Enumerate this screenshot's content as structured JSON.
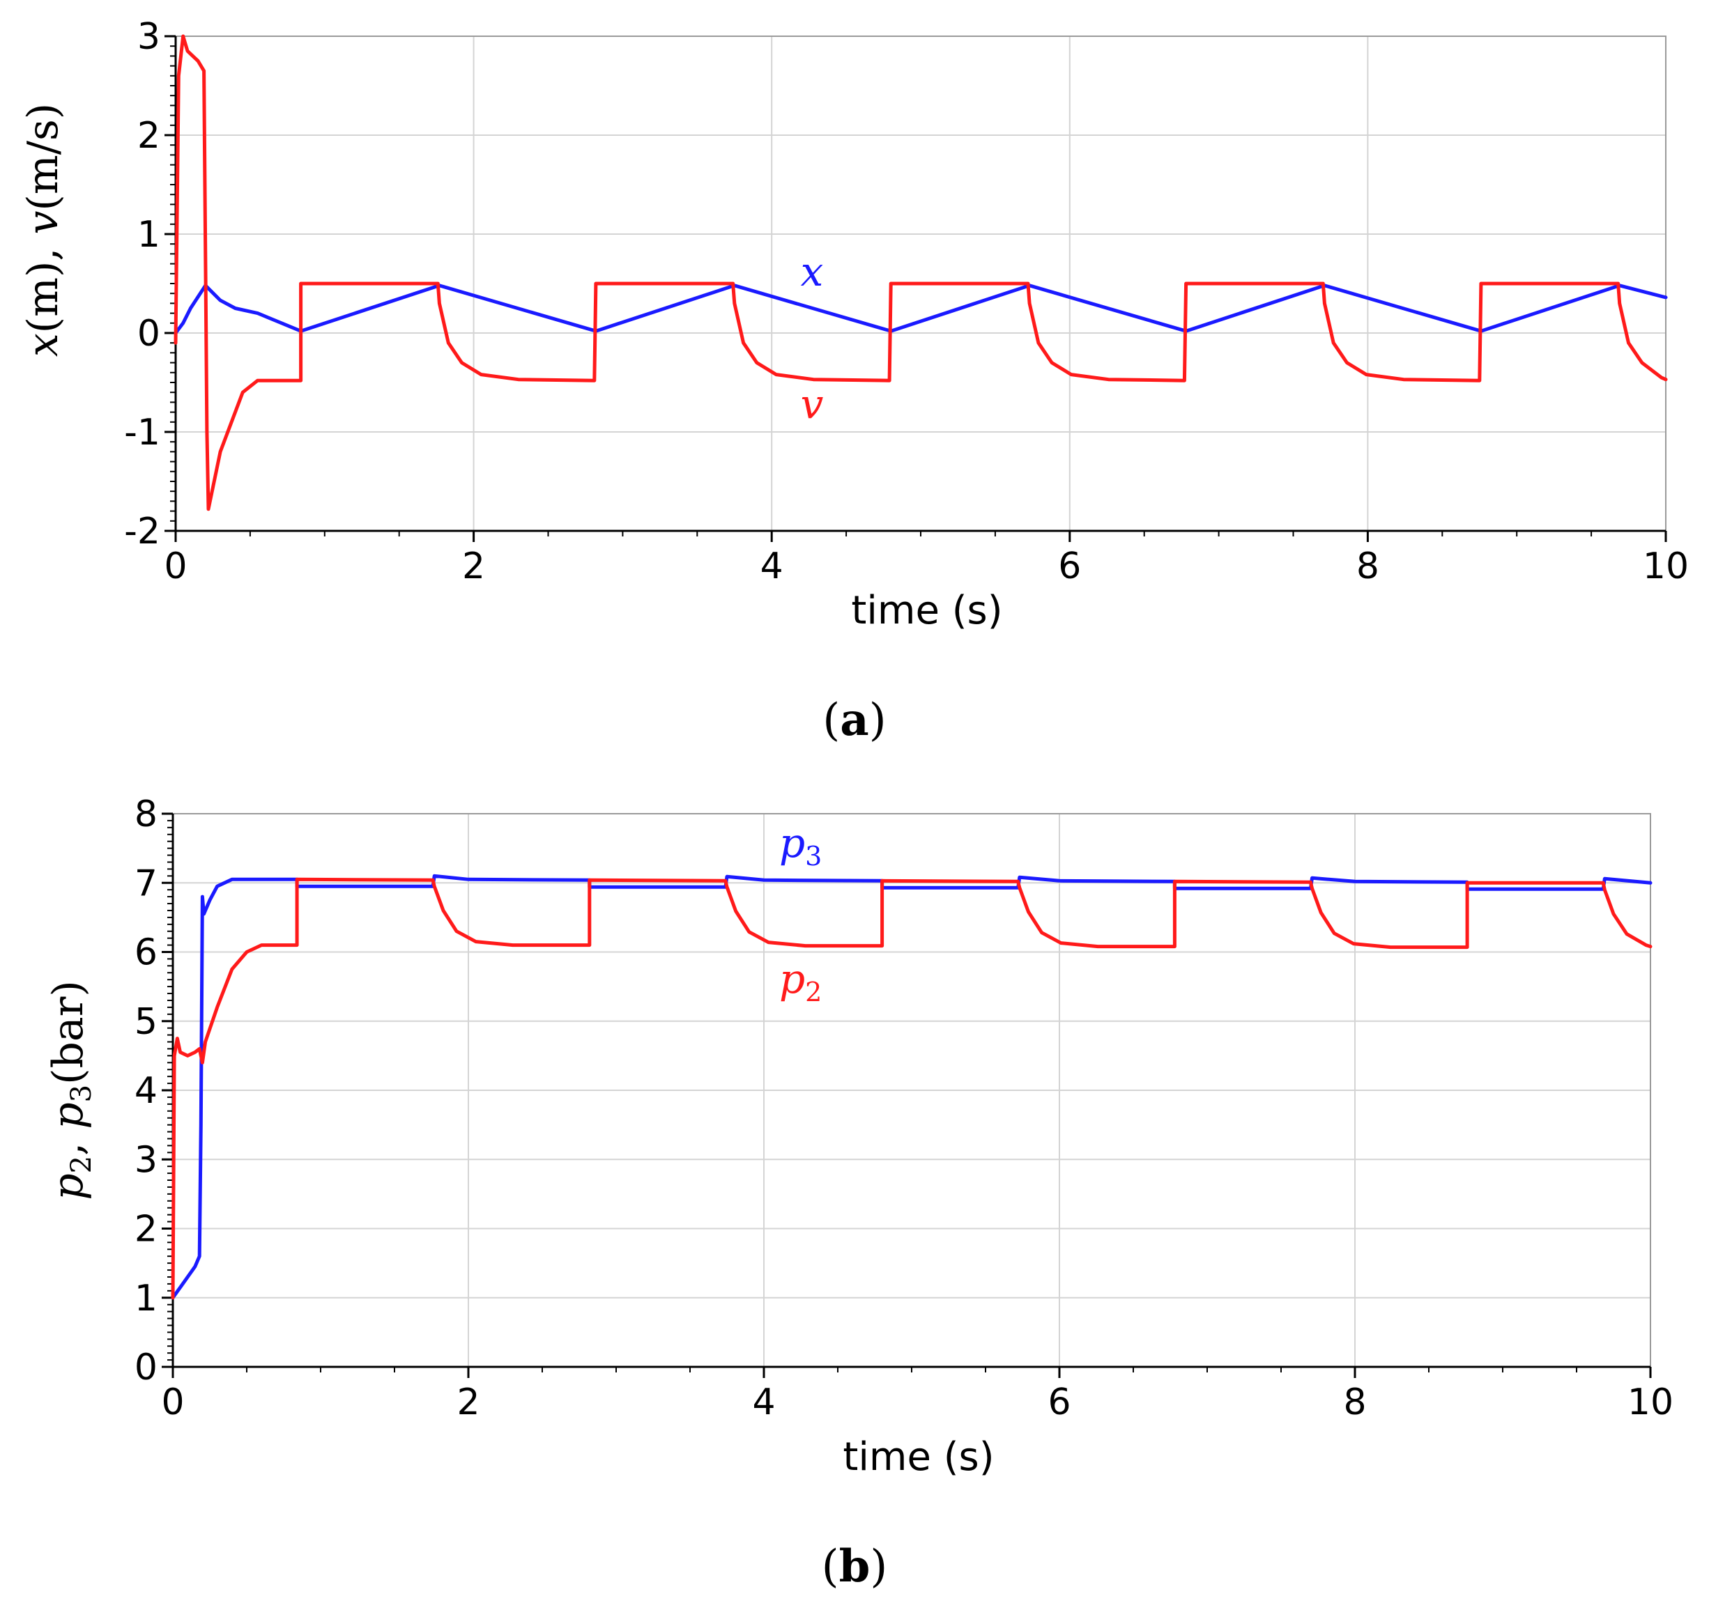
{
  "colors": {
    "blue": "#1a1aff",
    "red": "#ff1a1a"
  },
  "chart_data": [
    {
      "type": "line",
      "panel": "a",
      "caption_open": "(",
      "caption_letter": "a",
      "caption_close": ")",
      "xlabel": "time (s)",
      "ylabel_parts": [
        "x",
        "(m), ",
        "v",
        "(m/s)"
      ],
      "xlim": [
        0,
        10
      ],
      "ylim": [
        -2,
        3
      ],
      "xticks": [
        0,
        2,
        4,
        6,
        8,
        10
      ],
      "yticks": [
        -2,
        -1,
        0,
        1,
        2,
        3
      ],
      "series": [
        {
          "name": "x",
          "label": "x",
          "label_sub": "",
          "color": "blue",
          "points": [
            [
              0,
              0
            ],
            [
              0.05,
              0.1
            ],
            [
              0.1,
              0.25
            ],
            [
              0.2,
              0.48
            ],
            [
              0.3,
              0.33
            ],
            [
              0.4,
              0.25
            ],
            [
              0.55,
              0.2
            ],
            [
              0.84,
              0.02
            ],
            [
              1.77,
              0.48
            ],
            [
              2.82,
              0.02
            ],
            [
              3.75,
              0.48
            ],
            [
              4.8,
              0.02
            ],
            [
              5.73,
              0.48
            ],
            [
              6.78,
              0.02
            ],
            [
              7.71,
              0.48
            ],
            [
              8.76,
              0.02
            ],
            [
              9.69,
              0.48
            ],
            [
              10,
              0.36
            ]
          ]
        },
        {
          "name": "v",
          "label": "v",
          "label_sub": "",
          "color": "red",
          "points": [
            [
              0,
              -0.1
            ],
            [
              0.02,
              2.6
            ],
            [
              0.05,
              3.0
            ],
            [
              0.08,
              2.85
            ],
            [
              0.15,
              2.75
            ],
            [
              0.19,
              2.65
            ],
            [
              0.21,
              -1.0
            ],
            [
              0.22,
              -1.78
            ],
            [
              0.3,
              -1.2
            ],
            [
              0.45,
              -0.6
            ],
            [
              0.55,
              -0.48
            ],
            [
              0.84,
              -0.48
            ],
            [
              0.84,
              0.5
            ],
            [
              1.76,
              0.5
            ],
            [
              1.77,
              0.3
            ],
            [
              1.83,
              -0.1
            ],
            [
              1.92,
              -0.3
            ],
            [
              2.05,
              -0.42
            ],
            [
              2.3,
              -0.47
            ],
            [
              2.81,
              -0.48
            ],
            [
              2.82,
              0.5
            ],
            [
              3.74,
              0.5
            ],
            [
              3.75,
              0.3
            ],
            [
              3.81,
              -0.1
            ],
            [
              3.9,
              -0.3
            ],
            [
              4.03,
              -0.42
            ],
            [
              4.28,
              -0.47
            ],
            [
              4.79,
              -0.48
            ],
            [
              4.8,
              0.5
            ],
            [
              5.72,
              0.5
            ],
            [
              5.73,
              0.3
            ],
            [
              5.79,
              -0.1
            ],
            [
              5.88,
              -0.3
            ],
            [
              6.01,
              -0.42
            ],
            [
              6.26,
              -0.47
            ],
            [
              6.77,
              -0.48
            ],
            [
              6.78,
              0.5
            ],
            [
              7.7,
              0.5
            ],
            [
              7.71,
              0.3
            ],
            [
              7.77,
              -0.1
            ],
            [
              7.86,
              -0.3
            ],
            [
              7.99,
              -0.42
            ],
            [
              8.24,
              -0.47
            ],
            [
              8.75,
              -0.48
            ],
            [
              8.76,
              0.5
            ],
            [
              9.68,
              0.5
            ],
            [
              9.69,
              0.3
            ],
            [
              9.75,
              -0.1
            ],
            [
              9.84,
              -0.3
            ],
            [
              9.97,
              -0.45
            ],
            [
              10,
              -0.47
            ]
          ]
        }
      ]
    },
    {
      "type": "line",
      "panel": "b",
      "caption_open": "(",
      "caption_letter": "b",
      "caption_close": ")",
      "xlabel": "time (s)",
      "ylabel_parts": [
        "p",
        "2",
        ", ",
        "p",
        "3",
        "(bar)"
      ],
      "xlim": [
        0,
        10
      ],
      "ylim": [
        0,
        8
      ],
      "xticks": [
        0,
        2,
        4,
        6,
        8,
        10
      ],
      "yticks": [
        0,
        1,
        2,
        3,
        4,
        5,
        6,
        7,
        8
      ],
      "series": [
        {
          "name": "p3",
          "label": "p",
          "label_sub": "3",
          "color": "blue",
          "points": [
            [
              0,
              1.0
            ],
            [
              0.05,
              1.15
            ],
            [
              0.15,
              1.45
            ],
            [
              0.18,
              1.6
            ],
            [
              0.19,
              3.5
            ],
            [
              0.2,
              6.8
            ],
            [
              0.21,
              6.55
            ],
            [
              0.25,
              6.75
            ],
            [
              0.3,
              6.95
            ],
            [
              0.4,
              7.05
            ],
            [
              0.84,
              7.05
            ],
            [
              0.84,
              6.95
            ],
            [
              1.76,
              6.95
            ],
            [
              1.77,
              7.1
            ],
            [
              2.0,
              7.05
            ],
            [
              2.82,
              7.04
            ],
            [
              2.82,
              6.94
            ],
            [
              3.74,
              6.94
            ],
            [
              3.75,
              7.09
            ],
            [
              4.0,
              7.04
            ],
            [
              4.8,
              7.03
            ],
            [
              4.8,
              6.93
            ],
            [
              5.72,
              6.93
            ],
            [
              5.73,
              7.08
            ],
            [
              6.0,
              7.03
            ],
            [
              6.78,
              7.02
            ],
            [
              6.78,
              6.92
            ],
            [
              7.7,
              6.92
            ],
            [
              7.71,
              7.07
            ],
            [
              8.0,
              7.02
            ],
            [
              8.76,
              7.01
            ],
            [
              8.76,
              6.91
            ],
            [
              9.68,
              6.91
            ],
            [
              9.69,
              7.06
            ],
            [
              10,
              7.0
            ]
          ]
        },
        {
          "name": "p2",
          "label": "p",
          "label_sub": "2",
          "color": "red",
          "points": [
            [
              0,
              1.0
            ],
            [
              0.01,
              4.5
            ],
            [
              0.03,
              4.75
            ],
            [
              0.05,
              4.55
            ],
            [
              0.1,
              4.5
            ],
            [
              0.15,
              4.55
            ],
            [
              0.18,
              4.6
            ],
            [
              0.2,
              4.4
            ],
            [
              0.22,
              4.7
            ],
            [
              0.3,
              5.2
            ],
            [
              0.4,
              5.75
            ],
            [
              0.5,
              6.0
            ],
            [
              0.6,
              6.1
            ],
            [
              0.84,
              6.1
            ],
            [
              0.84,
              7.05
            ],
            [
              1.76,
              7.04
            ],
            [
              1.77,
              6.95
            ],
            [
              1.83,
              6.6
            ],
            [
              1.92,
              6.3
            ],
            [
              2.05,
              6.15
            ],
            [
              2.3,
              6.1
            ],
            [
              2.82,
              6.1
            ],
            [
              2.82,
              7.04
            ],
            [
              3.74,
              7.03
            ],
            [
              3.75,
              6.94
            ],
            [
              3.81,
              6.59
            ],
            [
              3.9,
              6.29
            ],
            [
              4.03,
              6.14
            ],
            [
              4.28,
              6.09
            ],
            [
              4.8,
              6.09
            ],
            [
              4.8,
              7.03
            ],
            [
              5.72,
              7.02
            ],
            [
              5.73,
              6.93
            ],
            [
              5.79,
              6.58
            ],
            [
              5.88,
              6.28
            ],
            [
              6.01,
              6.13
            ],
            [
              6.26,
              6.08
            ],
            [
              6.78,
              6.08
            ],
            [
              6.78,
              7.02
            ],
            [
              7.7,
              7.01
            ],
            [
              7.71,
              6.92
            ],
            [
              7.77,
              6.57
            ],
            [
              7.86,
              6.27
            ],
            [
              7.99,
              6.12
            ],
            [
              8.24,
              6.07
            ],
            [
              8.76,
              6.07
            ],
            [
              8.76,
              7.0
            ],
            [
              9.68,
              7.0
            ],
            [
              9.69,
              6.9
            ],
            [
              9.75,
              6.55
            ],
            [
              9.84,
              6.26
            ],
            [
              9.97,
              6.1
            ],
            [
              10,
              6.08
            ]
          ]
        }
      ]
    }
  ]
}
